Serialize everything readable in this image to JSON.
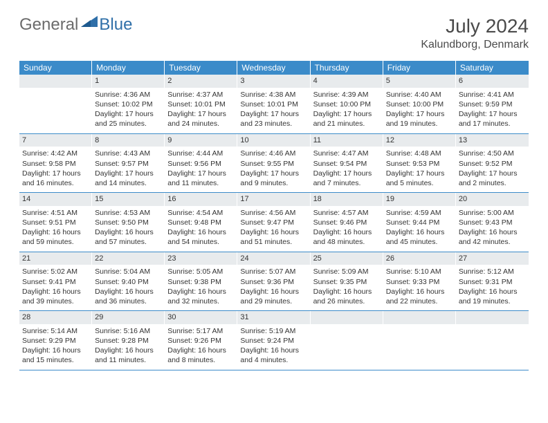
{
  "brand": {
    "word1": "General",
    "word2": "Blue"
  },
  "title": "July 2024",
  "location": "Kalundborg, Denmark",
  "colors": {
    "header_bg": "#3b8bc9",
    "daynum_bg": "#e8ebed",
    "text": "#333333",
    "brand_gray": "#6b6b6b",
    "brand_blue": "#2f6fa8",
    "rule": "#3b8bc9",
    "page_bg": "#ffffff"
  },
  "weekdays": [
    "Sunday",
    "Monday",
    "Tuesday",
    "Wednesday",
    "Thursday",
    "Friday",
    "Saturday"
  ],
  "weeks": [
    [
      null,
      {
        "n": "1",
        "sr": "4:36 AM",
        "ss": "10:02 PM",
        "dl": "17 hours and 25 minutes."
      },
      {
        "n": "2",
        "sr": "4:37 AM",
        "ss": "10:01 PM",
        "dl": "17 hours and 24 minutes."
      },
      {
        "n": "3",
        "sr": "4:38 AM",
        "ss": "10:01 PM",
        "dl": "17 hours and 23 minutes."
      },
      {
        "n": "4",
        "sr": "4:39 AM",
        "ss": "10:00 PM",
        "dl": "17 hours and 21 minutes."
      },
      {
        "n": "5",
        "sr": "4:40 AM",
        "ss": "10:00 PM",
        "dl": "17 hours and 19 minutes."
      },
      {
        "n": "6",
        "sr": "4:41 AM",
        "ss": "9:59 PM",
        "dl": "17 hours and 17 minutes."
      }
    ],
    [
      {
        "n": "7",
        "sr": "4:42 AM",
        "ss": "9:58 PM",
        "dl": "17 hours and 16 minutes."
      },
      {
        "n": "8",
        "sr": "4:43 AM",
        "ss": "9:57 PM",
        "dl": "17 hours and 14 minutes."
      },
      {
        "n": "9",
        "sr": "4:44 AM",
        "ss": "9:56 PM",
        "dl": "17 hours and 11 minutes."
      },
      {
        "n": "10",
        "sr": "4:46 AM",
        "ss": "9:55 PM",
        "dl": "17 hours and 9 minutes."
      },
      {
        "n": "11",
        "sr": "4:47 AM",
        "ss": "9:54 PM",
        "dl": "17 hours and 7 minutes."
      },
      {
        "n": "12",
        "sr": "4:48 AM",
        "ss": "9:53 PM",
        "dl": "17 hours and 5 minutes."
      },
      {
        "n": "13",
        "sr": "4:50 AM",
        "ss": "9:52 PM",
        "dl": "17 hours and 2 minutes."
      }
    ],
    [
      {
        "n": "14",
        "sr": "4:51 AM",
        "ss": "9:51 PM",
        "dl": "16 hours and 59 minutes."
      },
      {
        "n": "15",
        "sr": "4:53 AM",
        "ss": "9:50 PM",
        "dl": "16 hours and 57 minutes."
      },
      {
        "n": "16",
        "sr": "4:54 AM",
        "ss": "9:48 PM",
        "dl": "16 hours and 54 minutes."
      },
      {
        "n": "17",
        "sr": "4:56 AM",
        "ss": "9:47 PM",
        "dl": "16 hours and 51 minutes."
      },
      {
        "n": "18",
        "sr": "4:57 AM",
        "ss": "9:46 PM",
        "dl": "16 hours and 48 minutes."
      },
      {
        "n": "19",
        "sr": "4:59 AM",
        "ss": "9:44 PM",
        "dl": "16 hours and 45 minutes."
      },
      {
        "n": "20",
        "sr": "5:00 AM",
        "ss": "9:43 PM",
        "dl": "16 hours and 42 minutes."
      }
    ],
    [
      {
        "n": "21",
        "sr": "5:02 AM",
        "ss": "9:41 PM",
        "dl": "16 hours and 39 minutes."
      },
      {
        "n": "22",
        "sr": "5:04 AM",
        "ss": "9:40 PM",
        "dl": "16 hours and 36 minutes."
      },
      {
        "n": "23",
        "sr": "5:05 AM",
        "ss": "9:38 PM",
        "dl": "16 hours and 32 minutes."
      },
      {
        "n": "24",
        "sr": "5:07 AM",
        "ss": "9:36 PM",
        "dl": "16 hours and 29 minutes."
      },
      {
        "n": "25",
        "sr": "5:09 AM",
        "ss": "9:35 PM",
        "dl": "16 hours and 26 minutes."
      },
      {
        "n": "26",
        "sr": "5:10 AM",
        "ss": "9:33 PM",
        "dl": "16 hours and 22 minutes."
      },
      {
        "n": "27",
        "sr": "5:12 AM",
        "ss": "9:31 PM",
        "dl": "16 hours and 19 minutes."
      }
    ],
    [
      {
        "n": "28",
        "sr": "5:14 AM",
        "ss": "9:29 PM",
        "dl": "16 hours and 15 minutes."
      },
      {
        "n": "29",
        "sr": "5:16 AM",
        "ss": "9:28 PM",
        "dl": "16 hours and 11 minutes."
      },
      {
        "n": "30",
        "sr": "5:17 AM",
        "ss": "9:26 PM",
        "dl": "16 hours and 8 minutes."
      },
      {
        "n": "31",
        "sr": "5:19 AM",
        "ss": "9:24 PM",
        "dl": "16 hours and 4 minutes."
      },
      null,
      null,
      null
    ]
  ],
  "labels": {
    "sunrise": "Sunrise:",
    "sunset": "Sunset:",
    "daylight": "Daylight:"
  }
}
